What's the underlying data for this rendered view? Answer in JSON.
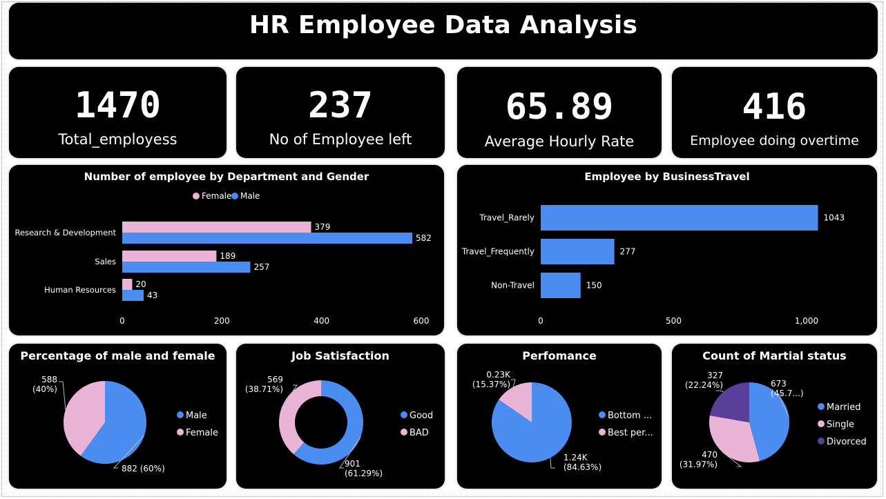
{
  "title": "HR Employee Data Analysis",
  "colors": {
    "male": "#4a8cf0",
    "female": "#e9b4d6",
    "divorced": "#5a3f9a",
    "card_bg": "#000000"
  },
  "kpis": [
    {
      "value": "1470",
      "label": "Total_employess"
    },
    {
      "value": "237",
      "label": "No of Employee left"
    },
    {
      "value": "65.89",
      "label": "Average Hourly Rate"
    },
    {
      "value": "416",
      "label": "Employee doing overtime"
    }
  ],
  "chart_data": [
    {
      "type": "bar",
      "orientation": "horizontal",
      "title": "Number of employee by Department and Gender",
      "categories": [
        "Research & Development",
        "Sales",
        "Human Resources"
      ],
      "series": [
        {
          "name": "Female",
          "values": [
            379,
            189,
            20
          ]
        },
        {
          "name": "Male",
          "values": [
            582,
            257,
            43
          ]
        }
      ],
      "xticks": [
        "0",
        "200",
        "400",
        "600"
      ],
      "xlim": [
        0,
        600
      ],
      "legend": "top"
    },
    {
      "type": "bar",
      "orientation": "horizontal",
      "title": "Employee by BusinessTravel",
      "categories": [
        "Travel_Rarely",
        "Travel_Frequently",
        "Non-Travel"
      ],
      "values": [
        1043,
        277,
        150
      ],
      "xticks": [
        "0",
        "500",
        "1,000"
      ],
      "xlim": [
        0,
        1000
      ]
    },
    {
      "type": "pie",
      "title": "Percentage of male and female",
      "slices": [
        {
          "name": "Male",
          "value": 882,
          "label": "882 (60%)"
        },
        {
          "name": "Female",
          "value": 588,
          "label": "588\n(40%)"
        }
      ],
      "legend": "right"
    },
    {
      "type": "pie",
      "donut": true,
      "title": "Job Satisfaction",
      "slices": [
        {
          "name": "Good",
          "value": 901,
          "label": "901\n(61.29%)"
        },
        {
          "name": "BAD",
          "value": 569,
          "label": "569\n(38.71%)"
        }
      ],
      "legend": "right"
    },
    {
      "type": "pie",
      "title": "Perfomance",
      "slices": [
        {
          "name": "Bottom ...",
          "value": 1244,
          "label": "1.24K\n(84.63%)"
        },
        {
          "name": "Best per...",
          "value": 226,
          "label": "0.23K\n(15.37%)"
        }
      ],
      "legend": "right"
    },
    {
      "type": "pie",
      "title": "Count of Martial status",
      "slices": [
        {
          "name": "Married",
          "value": 673,
          "label": "673\n(45.7...)"
        },
        {
          "name": "Single",
          "value": 470,
          "label": "470\n(31.97%)"
        },
        {
          "name": "Divorced",
          "value": 327,
          "label": "327\n(22.24%)"
        }
      ],
      "legend": "right"
    }
  ]
}
